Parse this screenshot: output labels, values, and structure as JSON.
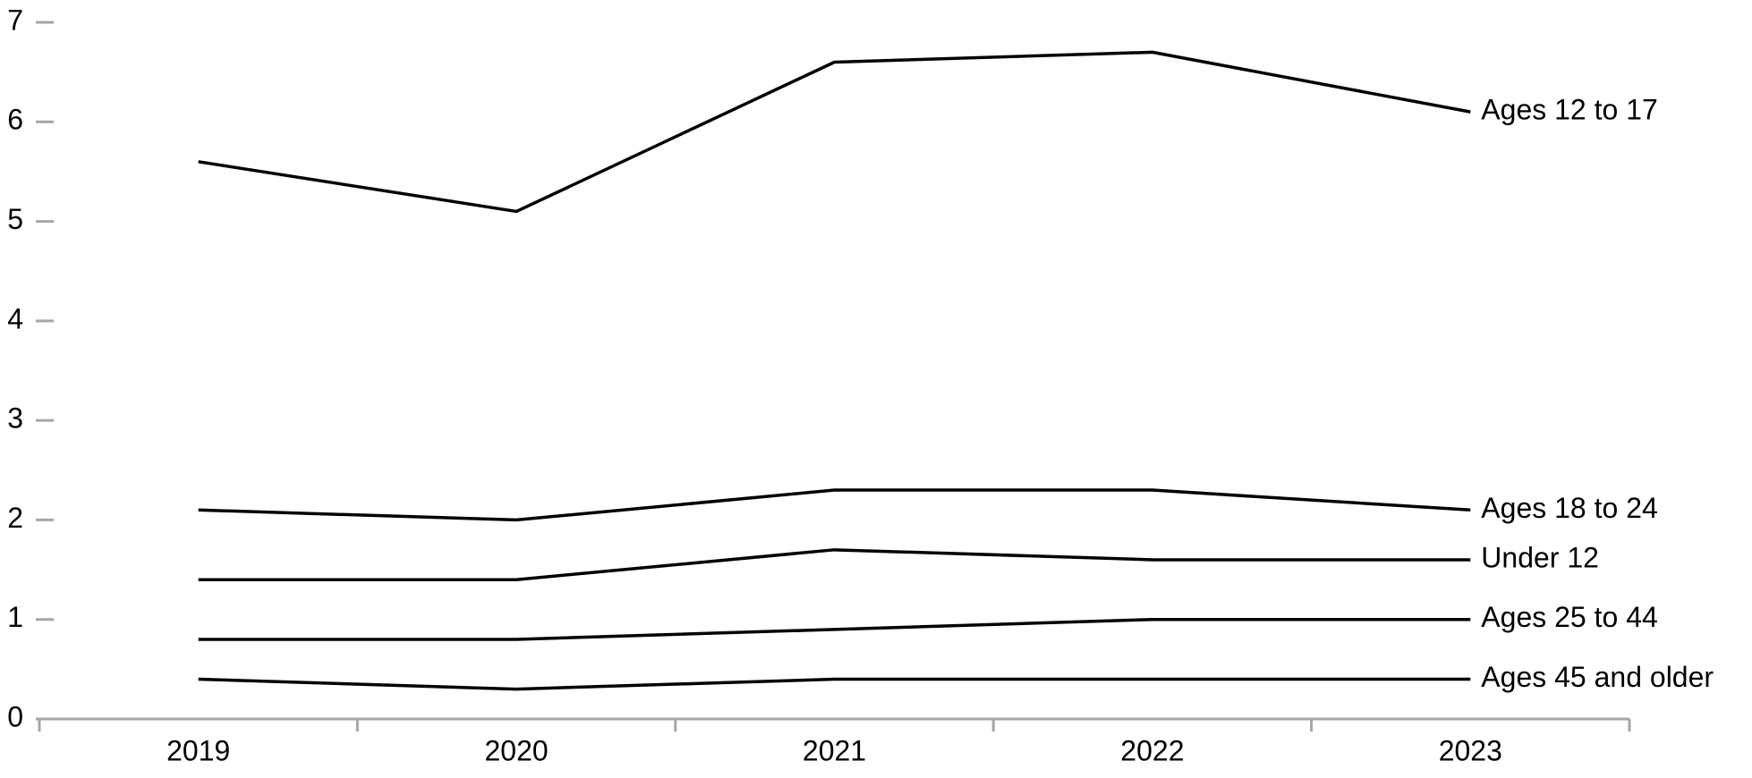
{
  "chart_data": {
    "type": "line",
    "categories": [
      "2019",
      "2020",
      "2021",
      "2022",
      "2023"
    ],
    "series": [
      {
        "name": "Ages 12 to 17",
        "color": "#000000",
        "values": [
          5.6,
          5.1,
          6.6,
          6.7,
          6.1
        ]
      },
      {
        "name": "Ages 18 to 24",
        "color": "#000000",
        "values": [
          2.1,
          2.0,
          2.3,
          2.3,
          2.1
        ]
      },
      {
        "name": "Under 12",
        "color": "#000000",
        "values": [
          1.4,
          1.4,
          1.7,
          1.6,
          1.6
        ]
      },
      {
        "name": "Ages 25 to 44",
        "color": "#000000",
        "values": [
          0.8,
          0.8,
          0.9,
          1.0,
          1.0
        ]
      },
      {
        "name": "Ages 45 and older",
        "color": "#000000",
        "values": [
          0.4,
          0.3,
          0.4,
          0.4,
          0.4
        ]
      }
    ],
    "ylim": [
      0,
      7
    ],
    "yticks": [
      0,
      1,
      2,
      3,
      4,
      5,
      6,
      7
    ],
    "grid": false
  }
}
